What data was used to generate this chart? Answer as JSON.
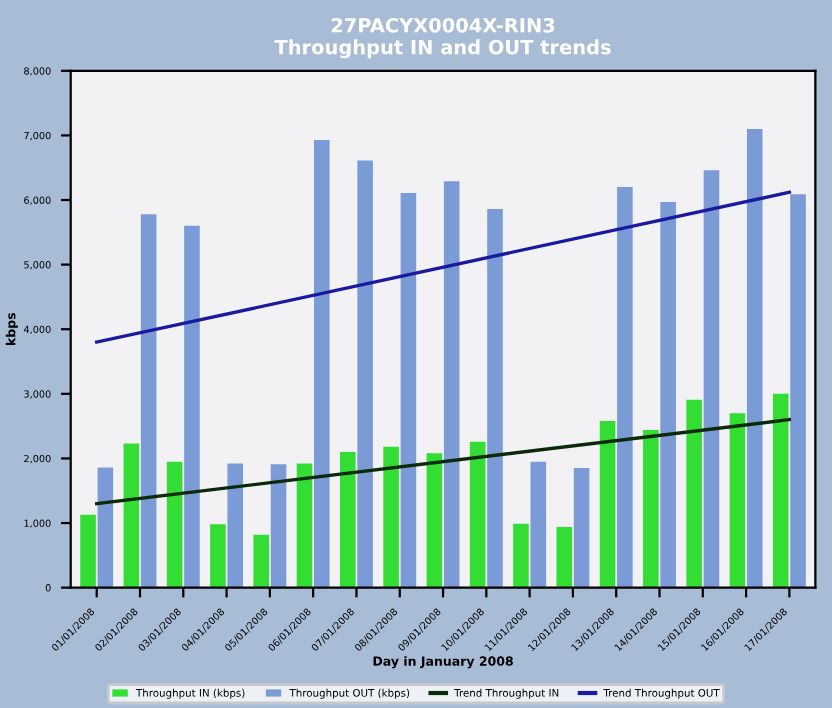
{
  "chart_data": {
    "type": "bar",
    "title": "27PACYX0004X-RIN3\nThroughput IN and OUT trends",
    "xlabel": "Day in January 2008",
    "ylabel": "kbps",
    "categories": [
      "01/01/2008",
      "02/01/2008",
      "03/01/2008",
      "04/01/2008",
      "05/01/2008",
      "06/01/2008",
      "07/01/2008",
      "08/01/2008",
      "09/01/2008",
      "10/01/2008",
      "11/01/2008",
      "12/01/2008",
      "13/01/2008",
      "14/01/2008",
      "15/01/2008",
      "16/01/2008",
      "17/01/2008"
    ],
    "series": [
      {
        "name": "Throughput IN (kbps)",
        "color": "#33dd33",
        "values": [
          1130,
          2230,
          1950,
          980,
          820,
          1920,
          2100,
          2180,
          2080,
          2260,
          990,
          940,
          2580,
          2440,
          2910,
          2700,
          3000
        ]
      },
      {
        "name": "Throughput OUT (kbps)",
        "color": "#7b9bd6",
        "values": [
          1860,
          5780,
          5600,
          1920,
          1910,
          6930,
          6610,
          6110,
          6290,
          5860,
          1950,
          1850,
          6200,
          5970,
          6460,
          7100,
          6090
        ]
      },
      {
        "name": "Trend Throughput IN",
        "type": "line",
        "color": "#0a2a0a",
        "values": [
          1300,
          null,
          null,
          null,
          null,
          null,
          null,
          null,
          null,
          null,
          null,
          null,
          null,
          null,
          null,
          null,
          2600
        ]
      },
      {
        "name": "Trend Throughput OUT",
        "type": "line",
        "color": "#1a1aa0",
        "values": [
          3800,
          null,
          null,
          null,
          null,
          null,
          null,
          null,
          null,
          null,
          null,
          null,
          null,
          null,
          null,
          null,
          6120
        ]
      }
    ],
    "ylim": [
      0,
      8000
    ],
    "yticks": [
      {
        "value": 0,
        "label": "0"
      },
      {
        "value": 1000,
        "label": "1,000"
      },
      {
        "value": 2000,
        "label": "2,000"
      },
      {
        "value": 3000,
        "label": "3,000"
      },
      {
        "value": 4000,
        "label": "4,000"
      },
      {
        "value": 5000,
        "label": "5,000"
      },
      {
        "value": 6000,
        "label": "6,000"
      },
      {
        "value": 7000,
        "label": "7,000"
      },
      {
        "value": 8000,
        "label": "8,000"
      }
    ],
    "grid": false,
    "legend": "bottom"
  }
}
